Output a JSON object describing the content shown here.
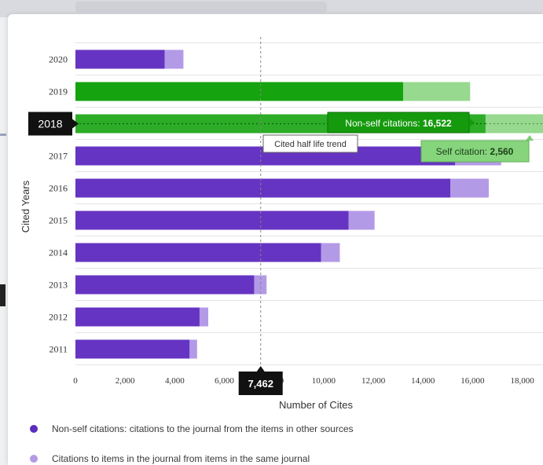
{
  "chart_data": {
    "type": "bar",
    "orientation": "horizontal",
    "stacked": true,
    "categories": [
      "2020",
      "2019",
      "2018",
      "2017",
      "2016",
      "2015",
      "2014",
      "2013",
      "2012",
      "2011"
    ],
    "series": [
      {
        "name": "Non-self citations",
        "values": [
          3600,
          13200,
          16522,
          15300,
          15100,
          11000,
          9900,
          7200,
          5000,
          4600
        ]
      },
      {
        "name": "Self citation",
        "values": [
          750,
          2700,
          2560,
          1850,
          1550,
          1050,
          750,
          500,
          350,
          300
        ]
      }
    ],
    "xlabel": "Number of Cites",
    "ylabel": "Cited Years",
    "xlim": [
      0,
      19500
    ],
    "xticks": [
      0,
      2000,
      4000,
      6000,
      8000,
      10000,
      12000,
      14000,
      16000,
      18000
    ],
    "xtick_labels": [
      "0",
      "2,000",
      "4,000",
      "6,000",
      "8,000",
      "10,000",
      "12,000",
      "14,000",
      "16,000",
      "18,000"
    ],
    "grid": "horizontal",
    "highlighted_category": "2018",
    "highlighted_category_label": "2018",
    "reference_line": {
      "value": 7462,
      "label": "7,462",
      "tooltip": "Cited half life trend"
    },
    "tooltips": {
      "nonself_prefix": "Non-self citations: ",
      "nonself_value": "16,522",
      "self_prefix": "Self citation: ",
      "self_value": "2,560"
    },
    "colors": {
      "nonself": "#6634c2",
      "self": "#b39ae6",
      "highlight_nonself": "#15a30f",
      "highlight_self": "#97d98f",
      "tooltip_dark": "#111111",
      "grid": "#e4e4e4"
    }
  },
  "legend": {
    "items": [
      {
        "label": "Non-self citations: citations to the journal from the items in other sources",
        "color": "#5b2dbd"
      },
      {
        "label": "Citations to items in the journal from items in the same journal",
        "color": "#b39ae6"
      }
    ]
  }
}
